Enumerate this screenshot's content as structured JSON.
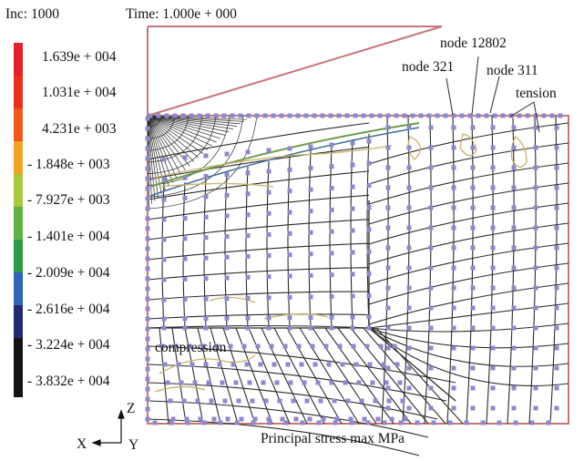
{
  "header": {
    "increment": "Inc: 1000",
    "time": "Time: 1.000e + 000"
  },
  "legend": {
    "labels": [
      "1.639e + 004",
      "1.031e + 004",
      "4.231e + 003",
      "- 1.848e + 003",
      "- 7.927e + 003",
      "- 1.401e + 004",
      "- 2.009e + 004",
      "- 2.616e + 004",
      "- 3.224e + 004",
      "- 3.832e + 004"
    ],
    "colors": [
      "#e2222a",
      "#e8301f",
      "#ee5a1e",
      "#f0a326",
      "#a8c93e",
      "#62b146",
      "#2d9a45",
      "#2f64b6",
      "#23296e",
      "#131313"
    ]
  },
  "annotations": {
    "node_12802": "node 12802",
    "node_321": "node 321",
    "node_311": "node 311",
    "tension": "tension",
    "compression": "compression"
  },
  "axes": {
    "z": "Z",
    "x": "X",
    "y": "Y"
  },
  "caption": "Principal stress max MPa",
  "colors": {
    "mesh_line": "#2b2b2b",
    "node_marker": "#8e88cc",
    "contour": "#c9b26a",
    "frame": "#c8757a",
    "compression_band": "#6f9b4c"
  }
}
